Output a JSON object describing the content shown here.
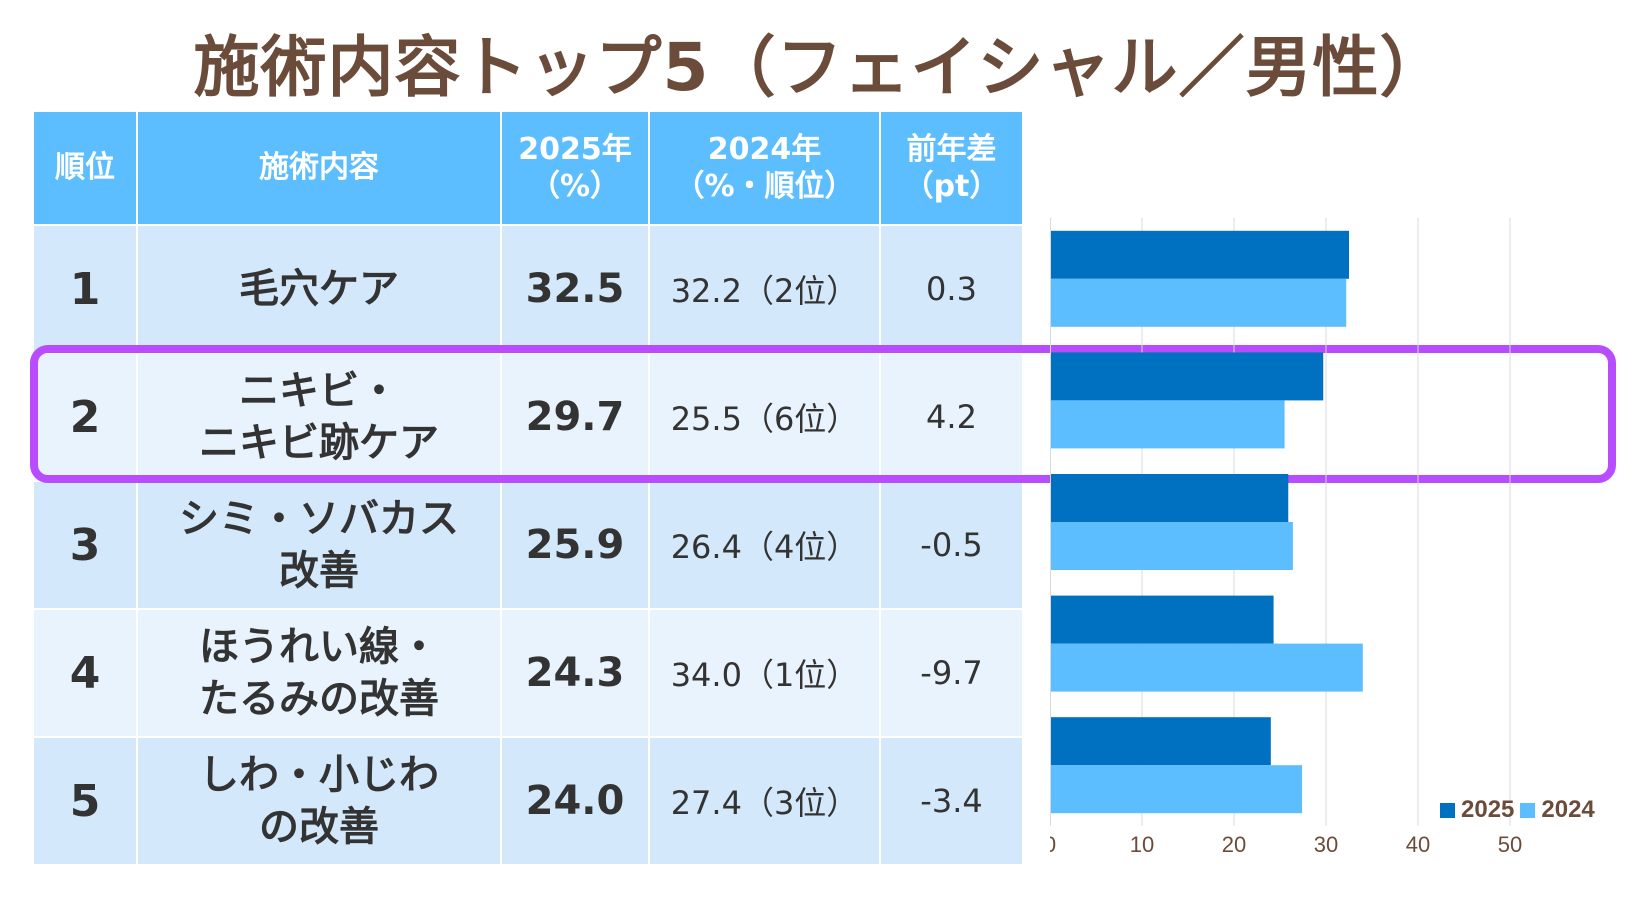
{
  "title": "施術内容トップ5（フェイシャル／男性）",
  "table": {
    "headers": {
      "rank": "順位",
      "item": "施術内容",
      "y2025_line1": "2025年",
      "y2025_line2": "（%）",
      "y2024_line1": "2024年",
      "y2024_line2": "（%・順位）",
      "diff_line1": "前年差",
      "diff_line2": "（pt）"
    },
    "rows": [
      {
        "rank": "1",
        "item_line1": "毛穴ケア",
        "item_line2": "",
        "v2025": "32.5",
        "v2024": "32.2（2位）",
        "diff": "0.3"
      },
      {
        "rank": "2",
        "item_line1": "ニキビ・",
        "item_line2": "ニキビ跡ケア",
        "v2025": "29.7",
        "v2024": "25.5（6位）",
        "diff": "4.2"
      },
      {
        "rank": "3",
        "item_line1": "シミ・ソバカス",
        "item_line2": "改善",
        "v2025": "25.9",
        "v2024": "26.4（4位）",
        "diff": "-0.5"
      },
      {
        "rank": "4",
        "item_line1": "ほうれい線・",
        "item_line2": "たるみの改善",
        "v2025": "24.3",
        "v2024": "34.0（1位）",
        "diff": "-9.7"
      },
      {
        "rank": "5",
        "item_line1": "しわ・小じわ",
        "item_line2": "の改善",
        "v2025": "24.0",
        "v2024": "27.4（3位）",
        "diff": "-3.4"
      }
    ]
  },
  "highlight_row": 2,
  "chart_data": {
    "type": "bar",
    "orientation": "horizontal",
    "categories": [
      "毛穴ケア",
      "ニキビ・ニキビ跡ケア",
      "シミ・ソバカス改善",
      "ほうれい線・たるみの改善",
      "しわ・小じわの改善"
    ],
    "series": [
      {
        "name": "2025",
        "values": [
          32.5,
          29.7,
          25.9,
          24.3,
          24.0
        ],
        "color": "#0070c0"
      },
      {
        "name": "2024",
        "values": [
          32.2,
          25.5,
          26.4,
          34.0,
          27.4
        ],
        "color": "#5cbdff"
      }
    ],
    "xlim": [
      0,
      50
    ],
    "xticks": [
      "0",
      "10",
      "20",
      "30",
      "40",
      "50"
    ],
    "grid": true,
    "legend_position": "bottom-right"
  },
  "colors": {
    "title": "#6b4c3a",
    "header_bg": "#5cbdff",
    "row_dark": "#d3e8fb",
    "row_light": "#e9f3fd",
    "highlight": "#b84dff"
  }
}
